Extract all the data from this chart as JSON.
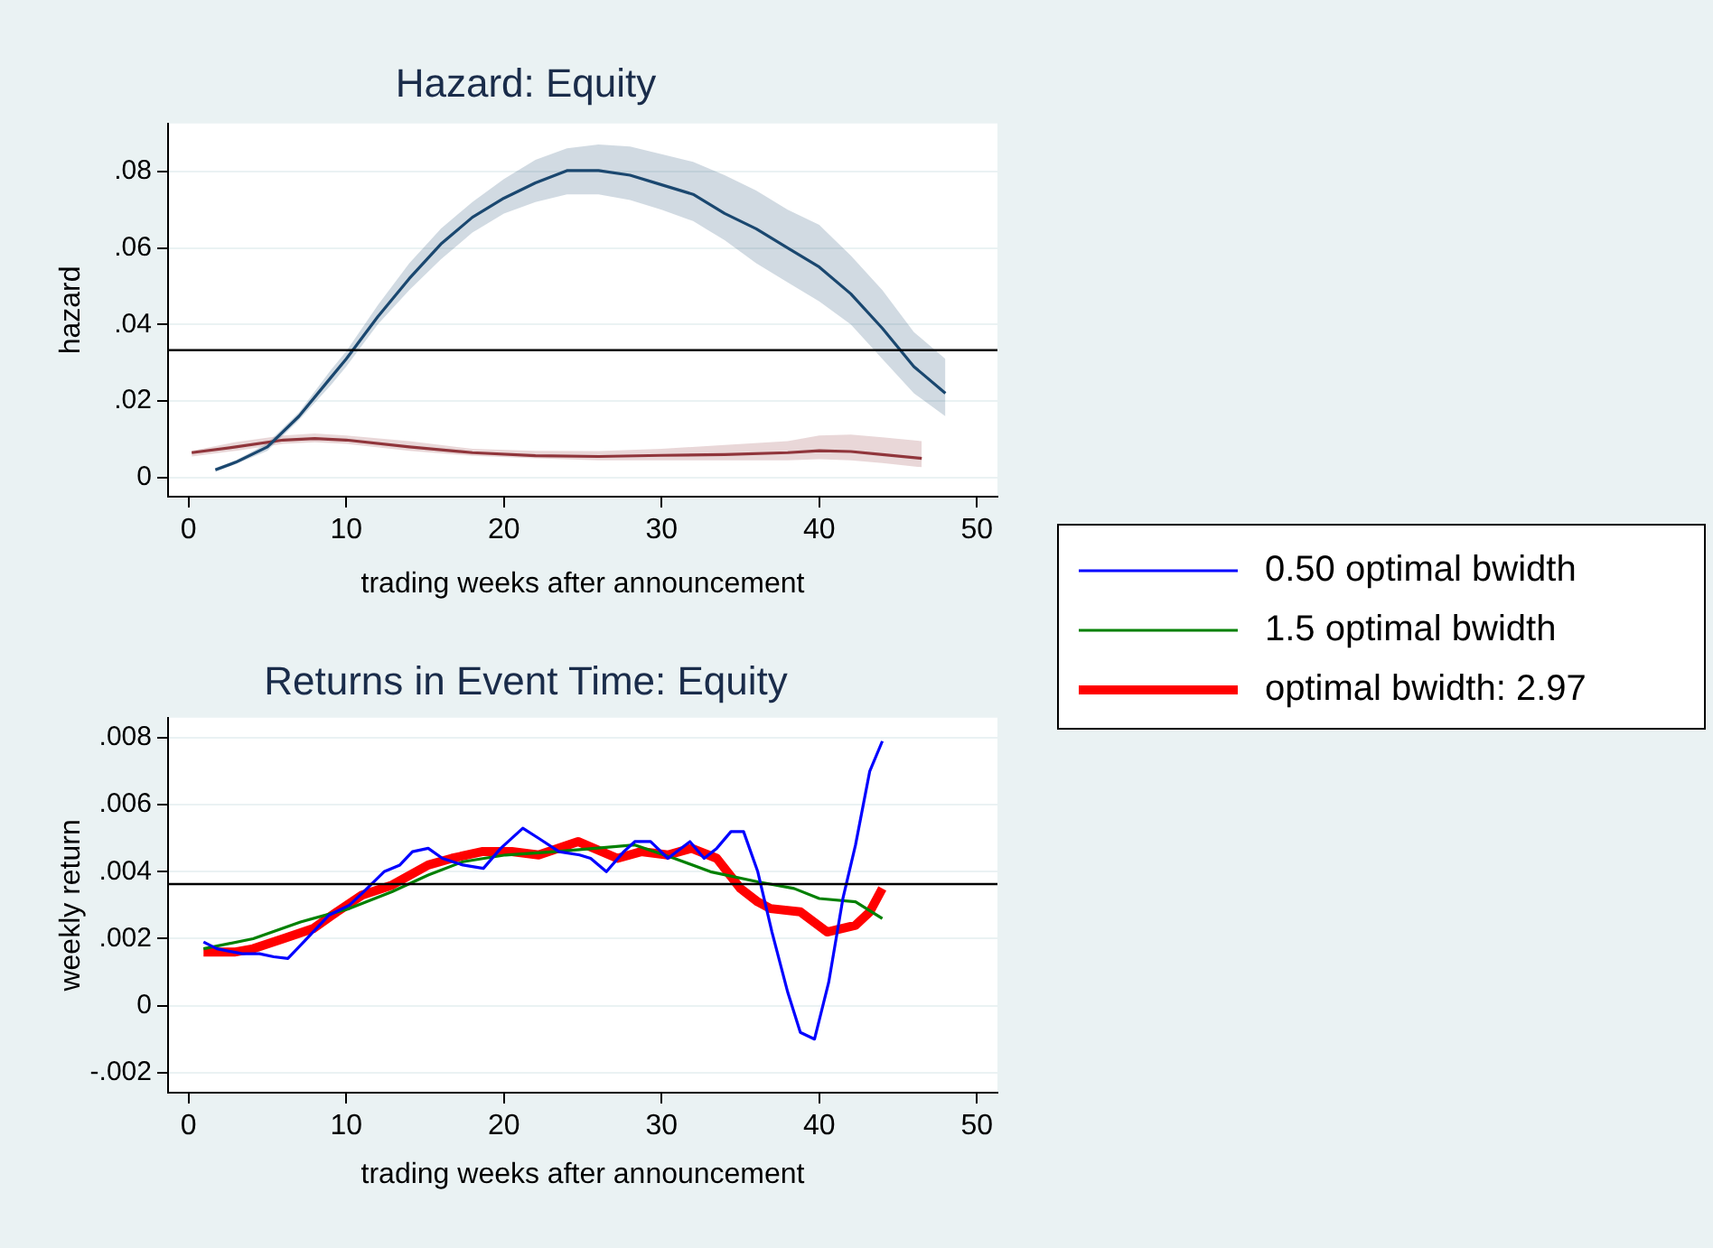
{
  "chart_data": [
    {
      "type": "line",
      "title": "Hazard: Equity",
      "xlabel": "trading weeks after announcement",
      "ylabel": "hazard",
      "xlim": [
        -1.3,
        51.3
      ],
      "xticks": [
        0,
        10,
        20,
        30,
        40,
        50
      ],
      "ylim": [
        -0.005,
        0.0925
      ],
      "yticks": [
        {
          "value": 0,
          "label": "0"
        },
        {
          "value": 0.02,
          "label": ".02"
        },
        {
          "value": 0.04,
          "label": ".04"
        },
        {
          "value": 0.06,
          "label": ".06"
        },
        {
          "value": 0.08,
          "label": ".08"
        }
      ],
      "grid": "y",
      "ref_lines": [
        {
          "axis": "y",
          "value": 0.0333,
          "color": "#000000"
        }
      ],
      "series": [
        {
          "color": "#1a476f",
          "x": [
            1.7,
            3,
            5,
            7,
            9,
            10,
            12,
            14,
            16,
            18,
            20,
            22,
            24,
            26,
            28,
            30,
            32,
            34,
            36,
            38,
            40,
            42,
            44,
            46,
            48
          ],
          "values": [
            0.002,
            0.004,
            0.008,
            0.016,
            0.026,
            0.031,
            0.042,
            0.052,
            0.061,
            0.068,
            0.073,
            0.077,
            0.0802,
            0.0802,
            0.079,
            0.0765,
            0.074,
            0.069,
            0.065,
            0.06,
            0.055,
            0.048,
            0.039,
            0.029,
            0.022
          ],
          "upper": [
            0.0025,
            0.0045,
            0.009,
            0.017,
            0.028,
            0.033,
            0.045,
            0.056,
            0.065,
            0.072,
            0.078,
            0.083,
            0.086,
            0.087,
            0.0865,
            0.0845,
            0.0825,
            0.079,
            0.075,
            0.07,
            0.066,
            0.058,
            0.049,
            0.038,
            0.031
          ],
          "lower": [
            0.0015,
            0.0035,
            0.007,
            0.015,
            0.024,
            0.029,
            0.04,
            0.049,
            0.057,
            0.064,
            0.069,
            0.072,
            0.074,
            0.074,
            0.0725,
            0.07,
            0.067,
            0.062,
            0.056,
            0.051,
            0.046,
            0.04,
            0.031,
            0.022,
            0.016
          ]
        },
        {
          "color": "#90353b",
          "x": [
            0.2,
            3,
            6,
            8,
            10,
            14,
            18,
            22,
            26,
            30,
            34,
            38,
            40,
            42,
            44,
            46.5
          ],
          "values": [
            0.0065,
            0.008,
            0.0098,
            0.0102,
            0.0098,
            0.008,
            0.0065,
            0.0057,
            0.0055,
            0.0058,
            0.006,
            0.0065,
            0.007,
            0.0068,
            0.006,
            0.005
          ],
          "upper": [
            0.007,
            0.0093,
            0.011,
            0.0115,
            0.011,
            0.0095,
            0.0075,
            0.007,
            0.0069,
            0.0075,
            0.0085,
            0.0095,
            0.011,
            0.0112,
            0.0105,
            0.0095
          ],
          "lower": [
            0.0055,
            0.007,
            0.0088,
            0.0092,
            0.0088,
            0.007,
            0.0057,
            0.005,
            0.0045,
            0.0045,
            0.0045,
            0.0045,
            0.0048,
            0.0045,
            0.0038,
            0.0027
          ]
        }
      ]
    },
    {
      "type": "line",
      "title": "Returns in Event Time: Equity",
      "xlabel": "trading weeks after announcement",
      "ylabel": "weekly return",
      "xlim": [
        -1.3,
        51.3
      ],
      "xticks": [
        0,
        10,
        20,
        30,
        40,
        50
      ],
      "ylim": [
        -0.0026,
        0.0086
      ],
      "yticks": [
        {
          "value": -0.002,
          "label": "-.002"
        },
        {
          "value": 0,
          "label": "0"
        },
        {
          "value": 0.002,
          "label": ".002"
        },
        {
          "value": 0.004,
          "label": ".004"
        },
        {
          "value": 0.006,
          "label": ".006"
        },
        {
          "value": 0.008,
          "label": ".008"
        }
      ],
      "grid": "y",
      "legend": "right",
      "ref_lines": [
        {
          "axis": "y",
          "value": 0.00363,
          "color": "#000000"
        }
      ],
      "series": [
        {
          "name": "0.50 optimal bwidth",
          "color": "#0000ff",
          "x": [
            0.95,
            1.8,
            3.4,
            4.5,
            5.4,
            6.3,
            7.3,
            8.9,
            10.2,
            11.1,
            12.4,
            13.4,
            14.2,
            15.2,
            16.1,
            17.4,
            18.7,
            19.8,
            21.2,
            22.2,
            23.5,
            24.8,
            25.5,
            26.5,
            27.6,
            28.3,
            29.3,
            30.4,
            31.8,
            32.7,
            33.5,
            34.4,
            35.2,
            36.1,
            37,
            38,
            38.8,
            39.7,
            40.6,
            41.5,
            42.3,
            43.2,
            44
          ],
          "values": [
            0.0019,
            0.0017,
            0.00155,
            0.00155,
            0.00146,
            0.00141,
            0.0019,
            0.0027,
            0.003,
            0.0034,
            0.004,
            0.0042,
            0.0046,
            0.0047,
            0.0044,
            0.0042,
            0.0041,
            0.0047,
            0.0053,
            0.005,
            0.0046,
            0.0045,
            0.0044,
            0.004,
            0.0046,
            0.0049,
            0.0049,
            0.0044,
            0.0049,
            0.0044,
            0.0047,
            0.0052,
            0.0052,
            0.004,
            0.0022,
            0.0004,
            -0.0008,
            -0.001,
            0.0007,
            0.0032,
            0.0048,
            0.007,
            0.0079
          ]
        },
        {
          "name": "1.5 optimal bwidth",
          "color": "#008000",
          "x": [
            0.95,
            4.1,
            7.1,
            10.2,
            12.9,
            15.2,
            17.4,
            20.1,
            23.2,
            25.8,
            28.3,
            30.8,
            33.1,
            36.1,
            38.4,
            40,
            42.3,
            44
          ],
          "values": [
            0.0017,
            0.002,
            0.0025,
            0.0029,
            0.0034,
            0.0039,
            0.0043,
            0.0045,
            0.0046,
            0.0047,
            0.0048,
            0.0044,
            0.004,
            0.0037,
            0.0035,
            0.0032,
            0.0031,
            0.0026
          ]
        },
        {
          "name": "optimal bwidth: 2.97",
          "color": "#ff0000",
          "x": [
            0.95,
            2.9,
            4.1,
            6,
            7.9,
            9.4,
            11,
            12.9,
            15.2,
            16.7,
            18.6,
            20.5,
            22.2,
            24.7,
            27.2,
            28.7,
            30.4,
            31.9,
            33.5,
            35,
            36.1,
            36.9,
            38.8,
            40.5,
            42.3,
            43.2,
            44
          ],
          "values": [
            0.0016,
            0.0016,
            0.0017,
            0.002,
            0.0023,
            0.0028,
            0.0033,
            0.0036,
            0.0042,
            0.0044,
            0.0046,
            0.0046,
            0.0045,
            0.0049,
            0.0044,
            0.0046,
            0.0045,
            0.0047,
            0.0044,
            0.0035,
            0.0031,
            0.0029,
            0.0028,
            0.0022,
            0.0024,
            0.0028,
            0.0035
          ]
        }
      ]
    }
  ]
}
